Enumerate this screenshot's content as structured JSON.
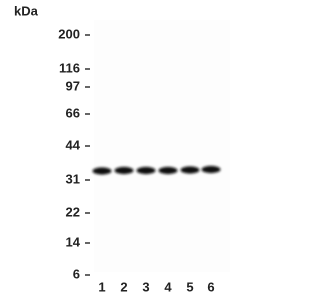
{
  "unit_label": "kDa",
  "markers": [
    "200",
    "116",
    "97",
    "66",
    "44",
    "31",
    "22",
    "14",
    "6"
  ],
  "lanes": [
    "1",
    "2",
    "3",
    "4",
    "5",
    "6"
  ]
}
